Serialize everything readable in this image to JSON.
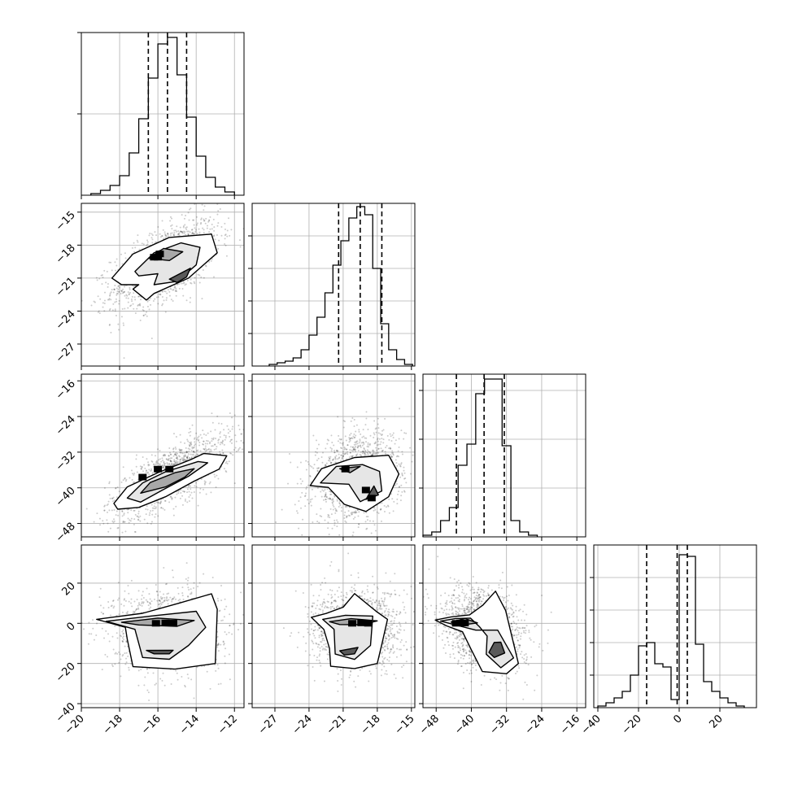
{
  "chart_data": {
    "type": "corner",
    "title": "",
    "parameters": [
      "",
      "",
      "",
      ""
    ],
    "grid": true,
    "x_axes": [
      {
        "range": [
          -20,
          -11.5
        ],
        "ticks": [
          -20,
          -18,
          -16,
          -14,
          -12
        ],
        "tick_labels": [
          "−20",
          "−18",
          "−16",
          "−14",
          "−12"
        ]
      },
      {
        "range": [
          -29,
          -14.7
        ],
        "ticks": [
          -27,
          -24,
          -21,
          -18,
          -15
        ],
        "tick_labels": [
          "−27",
          "−24",
          "−21",
          "−18",
          "−15"
        ]
      },
      {
        "range": [
          -51,
          -14
        ],
        "ticks": [
          -48,
          -40,
          -32,
          -24,
          -16
        ],
        "tick_labels": [
          "−48",
          "−40",
          "−32",
          "−24",
          "−16"
        ]
      },
      {
        "range": [
          -42,
          38
        ],
        "ticks": [
          -40,
          -20,
          0,
          20
        ],
        "tick_labels": [
          "−40",
          "−20",
          "0",
          "20"
        ]
      }
    ],
    "y_axes": [
      null,
      {
        "range": [
          -29,
          -14.2
        ],
        "ticks": [
          -15,
          -18,
          -21,
          -24,
          -27
        ],
        "tick_labels": [
          "−15",
          "−18",
          "−21",
          "−24",
          "−27"
        ]
      },
      {
        "range": [
          -51,
          -14.5
        ],
        "ticks": [
          -16,
          -24,
          -32,
          -40,
          -48
        ],
        "tick_labels": [
          "−16",
          "−24",
          "−32",
          "−40",
          "−48"
        ]
      },
      {
        "range": [
          -42,
          39
        ],
        "ticks": [
          20,
          0,
          -20,
          -40
        ],
        "tick_labels": [
          "20",
          "0",
          "−20",
          "−40"
        ]
      }
    ],
    "marginals": [
      {
        "param": 0,
        "bin_edges": [
          -19.5,
          -19.0,
          -18.5,
          -18.0,
          -17.5,
          -17.0,
          -16.5,
          -16.0,
          -15.5,
          -15.0,
          -14.5,
          -14.0,
          -13.5,
          -13.0,
          -12.5,
          -12.0
        ],
        "counts": [
          1,
          3,
          6,
          12,
          26,
          47,
          72,
          93,
          97,
          74,
          48,
          24,
          11,
          5,
          2
        ],
        "ylim": [
          0,
          100
        ],
        "yticks": [
          50,
          100
        ],
        "quantiles": [
          -16.5,
          -15.5,
          -14.5
        ]
      },
      {
        "param": 1,
        "bin_edges": [
          -27.5,
          -26.8,
          -26.1,
          -25.4,
          -24.7,
          -24.0,
          -23.3,
          -22.6,
          -21.9,
          -21.2,
          -20.5,
          -19.8,
          -19.1,
          -18.4,
          -17.7,
          -17.0,
          -16.3,
          -15.6,
          -14.9
        ],
        "counts": [
          1,
          2,
          3,
          5,
          10,
          19,
          30,
          45,
          62,
          77,
          91,
          98,
          93,
          60,
          26,
          10,
          4,
          1
        ],
        "ylim": [
          0,
          100
        ],
        "yticks": [
          20,
          40,
          60,
          80
        ],
        "quantiles": [
          -21.4,
          -19.5,
          -17.6
        ]
      },
      {
        "param": 2,
        "bin_edges": [
          -51,
          -49,
          -47,
          -45,
          -43,
          -41,
          -39,
          -37,
          -35,
          -33,
          -31,
          -29,
          -27,
          -25
        ],
        "counts": [
          1,
          3,
          10,
          18,
          44,
          57,
          88,
          97,
          97,
          56,
          10,
          3,
          1
        ],
        "ylim": [
          0,
          100
        ],
        "yticks": [
          30,
          60,
          90
        ],
        "quantiles": [
          -43.4,
          -37.1,
          -32.5
        ]
      },
      {
        "param": 3,
        "bin_edges": [
          -40,
          -36,
          -32,
          -28,
          -24,
          -20,
          -16,
          -12,
          -8,
          -4,
          0,
          4,
          8,
          12,
          16,
          20,
          24,
          28,
          32
        ],
        "counts": [
          1,
          3,
          6,
          10,
          20,
          38,
          40,
          27,
          25,
          5,
          94,
          93,
          39,
          16,
          10,
          6,
          3,
          1
        ],
        "ylim": [
          0,
          100
        ],
        "yticks": [
          20,
          40,
          60,
          80
        ],
        "quantiles": [
          -16,
          -1,
          4
        ]
      }
    ],
    "pairs": [
      {
        "x": 0,
        "y": 1,
        "mean": [
          -15.6,
          -19.7
        ],
        "sd": [
          1.4,
          2.0
        ],
        "rho": 0.6,
        "contours": [
          [
            [
              -18.4,
              -21.0
            ],
            [
              -17.3,
              -18.8
            ],
            [
              -15.4,
              -17.3
            ],
            [
              -13.2,
              -17.0
            ],
            [
              -12.9,
              -18.7
            ],
            [
              -14.4,
              -21.0
            ],
            [
              -16.2,
              -22.4
            ],
            [
              -16.6,
              -23.0
            ],
            [
              -17.3,
              -22.0
            ],
            [
              -17.0,
              -21.6
            ],
            [
              -17.9,
              -21.6
            ]
          ],
          [
            [
              -17.2,
              -20.4
            ],
            [
              -16.2,
              -18.7
            ],
            [
              -14.8,
              -17.8
            ],
            [
              -13.8,
              -18.2
            ],
            [
              -14.0,
              -19.8
            ],
            [
              -15.0,
              -21.3
            ],
            [
              -16.2,
              -21.6
            ],
            [
              -16.0,
              -20.6
            ],
            [
              -17.0,
              -20.8
            ]
          ],
          [
            [
              -16.5,
              -19.2
            ],
            [
              -15.7,
              -18.3
            ],
            [
              -14.7,
              -18.6
            ],
            [
              -15.4,
              -19.4
            ]
          ],
          [
            [
              -15.4,
              -21.1
            ],
            [
              -14.3,
              -20.1
            ],
            [
              -14.5,
              -20.9
            ],
            [
              -15.0,
              -21.4
            ]
          ]
        ],
        "peaks": [
          [
            -16.2,
            -19.1
          ],
          [
            -15.9,
            -18.8
          ],
          [
            -16.0,
            -19.1
          ]
        ]
      },
      {
        "x": 0,
        "y": 2,
        "mean": [
          -15.3,
          -37.3
        ],
        "sd": [
          1.6,
          4.8
        ],
        "rho": 0.75,
        "contours": [
          [
            [
              -18.3,
              -43.5
            ],
            [
              -17.6,
              -39.8
            ],
            [
              -16.0,
              -36.6
            ],
            [
              -14.3,
              -33.7
            ],
            [
              -13.6,
              -32.3
            ],
            [
              -12.4,
              -32.8
            ],
            [
              -12.8,
              -35.8
            ],
            [
              -14.1,
              -38.5
            ],
            [
              -15.6,
              -42.0
            ],
            [
              -17.0,
              -44.4
            ],
            [
              -18.1,
              -44.8
            ]
          ],
          [
            [
              -17.6,
              -42.3
            ],
            [
              -16.8,
              -38.9
            ],
            [
              -15.6,
              -36.4
            ],
            [
              -13.9,
              -34.1
            ],
            [
              -13.4,
              -34.4
            ],
            [
              -14.4,
              -37.4
            ],
            [
              -15.8,
              -40.6
            ],
            [
              -16.9,
              -43.2
            ]
          ],
          [
            [
              -16.9,
              -41.2
            ],
            [
              -16.4,
              -38.8
            ],
            [
              -15.1,
              -36.6
            ],
            [
              -14.1,
              -35.7
            ],
            [
              -14.6,
              -37.6
            ],
            [
              -15.6,
              -39.8
            ]
          ]
        ],
        "peaks": [
          [
            -15.4,
            -35.8
          ],
          [
            -16.0,
            -35.8
          ],
          [
            -16.8,
            -37.6
          ]
        ]
      },
      {
        "x": 1,
        "y": 2,
        "mean": [
          -19.7,
          -37.3
        ],
        "sd": [
          2.0,
          4.8
        ],
        "rho": 0.2,
        "contours": [
          [
            [
              -23.9,
              -39.5
            ],
            [
              -22.9,
              -35.7
            ],
            [
              -20.0,
              -33.2
            ],
            [
              -17.0,
              -32.7
            ],
            [
              -16.1,
              -36.9
            ],
            [
              -17.0,
              -42.0
            ],
            [
              -19.0,
              -45.3
            ],
            [
              -20.9,
              -43.7
            ],
            [
              -22.3,
              -39.9
            ]
          ],
          [
            [
              -23.0,
              -38.9
            ],
            [
              -21.6,
              -35.2
            ],
            [
              -19.3,
              -34.8
            ],
            [
              -17.8,
              -36.3
            ],
            [
              -17.6,
              -40.7
            ],
            [
              -19.5,
              -43.1
            ],
            [
              -20.5,
              -39.2
            ]
          ],
          [
            [
              -21.3,
              -35.7
            ],
            [
              -19.5,
              -35.2
            ],
            [
              -20.4,
              -36.6
            ]
          ],
          [
            [
              -19.0,
              -42.6
            ],
            [
              -18.3,
              -39.6
            ],
            [
              -17.9,
              -41.6
            ]
          ]
        ],
        "peaks": [
          [
            -20.8,
            -35.8
          ],
          [
            -19.0,
            -40.5
          ],
          [
            -18.5,
            -42.3
          ]
        ]
      },
      {
        "x": 0,
        "y": 3,
        "mean": [
          -15.5,
          -3
        ],
        "sd": [
          1.4,
          10
        ],
        "rho": 0,
        "contours": [
          [
            [
              -19.2,
              2.0
            ],
            [
              -16.8,
              5.0
            ],
            [
              -14.9,
              10.0
            ],
            [
              -13.2,
              14.7
            ],
            [
              -12.9,
              7.0
            ],
            [
              -13.0,
              -20.0
            ],
            [
              -15.1,
              -22.8
            ],
            [
              -17.3,
              -21.6
            ],
            [
              -17.6,
              -8.0
            ],
            [
              -17.7,
              -2.0
            ]
          ],
          [
            [
              -18.7,
              1.0
            ],
            [
              -16.2,
              3.8
            ],
            [
              -14.0,
              6.0
            ],
            [
              -13.5,
              -2.0
            ],
            [
              -14.4,
              -11.0
            ],
            [
              -15.4,
              -17.9
            ],
            [
              -16.8,
              -17.0
            ],
            [
              -17.2,
              -3.0
            ]
          ],
          [
            [
              -17.9,
              0.5
            ],
            [
              -16.0,
              2.6
            ],
            [
              -14.1,
              1.4
            ],
            [
              -15.0,
              -1.5
            ],
            [
              -17.0,
              -0.8
            ]
          ],
          [
            [
              -16.6,
              -13.5
            ],
            [
              -15.2,
              -13.4
            ],
            [
              -15.4,
              -15.2
            ],
            [
              -16.2,
              -15.2
            ]
          ]
        ],
        "peaks": [
          [
            -15.6,
            0.2
          ],
          [
            -15.2,
            0.1
          ],
          [
            -16.1,
            0.0
          ]
        ]
      },
      {
        "x": 1,
        "y": 3,
        "mean": [
          -19.7,
          -3
        ],
        "sd": [
          2.0,
          10
        ],
        "rho": 0,
        "contours": [
          [
            [
              -23.8,
              3.0
            ],
            [
              -22.5,
              4.9
            ],
            [
              -21.0,
              8.0
            ],
            [
              -20.0,
              14.8
            ],
            [
              -18.1,
              6.0
            ],
            [
              -17.1,
              2.0
            ],
            [
              -17.6,
              -10.5
            ],
            [
              -18.0,
              -20.0
            ],
            [
              -20.0,
              -22.5
            ],
            [
              -22.1,
              -21.4
            ],
            [
              -22.2,
              -12.5
            ],
            [
              -22.7,
              -3.0
            ]
          ],
          [
            [
              -22.8,
              2.0
            ],
            [
              -20.8,
              4.0
            ],
            [
              -18.4,
              3.6
            ],
            [
              -18.6,
              -11.0
            ],
            [
              -20.0,
              -18.0
            ],
            [
              -21.7,
              -15.3
            ],
            [
              -21.8,
              -3.0
            ]
          ],
          [
            [
              -22.2,
              0.8
            ],
            [
              -20.3,
              2.3
            ],
            [
              -18.0,
              1.2
            ],
            [
              -19.4,
              -0.7
            ],
            [
              -21.3,
              -0.6
            ]
          ],
          [
            [
              -21.3,
              -13.7
            ],
            [
              -19.7,
              -12.0
            ],
            [
              -20.0,
              -15.2
            ],
            [
              -20.9,
              -15.8
            ]
          ]
        ],
        "peaks": [
          [
            -19.4,
            0.2
          ],
          [
            -18.8,
            0.0
          ],
          [
            -20.2,
            0.0
          ]
        ]
      },
      {
        "x": 2,
        "y": 3,
        "mean": [
          -37.3,
          -3
        ],
        "sd": [
          4.8,
          10
        ],
        "rho": -0.25,
        "contours": [
          [
            [
              -48.2,
              1.6
            ],
            [
              -44.6,
              3.2
            ],
            [
              -40.4,
              4.2
            ],
            [
              -37.4,
              9.0
            ],
            [
              -34.5,
              16.0
            ],
            [
              -32.2,
              6.4
            ],
            [
              -29.3,
              -20.0
            ],
            [
              -32.0,
              -25.1
            ],
            [
              -37.5,
              -24.0
            ],
            [
              -39.9,
              -13.6
            ],
            [
              -42.0,
              -4.2
            ],
            [
              -45.6,
              -1.3
            ]
          ],
          [
            [
              -47.0,
              1.1
            ],
            [
              -43.6,
              2.4
            ],
            [
              -40.2,
              2.6
            ],
            [
              -38.2,
              -1.6
            ],
            [
              -36.4,
              -6.3
            ],
            [
              -36.6,
              -15.4
            ],
            [
              -33.3,
              -22.1
            ],
            [
              -30.4,
              -17.2
            ],
            [
              -34.0,
              -3.4
            ],
            [
              -39.0,
              -3.4
            ]
          ],
          [
            [
              -44.6,
              0.6
            ],
            [
              -41.5,
              2.4
            ],
            [
              -38.6,
              0.2
            ],
            [
              -42.4,
              -0.9
            ]
          ],
          [
            [
              -34.8,
              -9.5
            ],
            [
              -33.3,
              -9.4
            ],
            [
              -32.4,
              -14.8
            ],
            [
              -34.8,
              -17.0
            ],
            [
              -36.0,
              -14.5
            ]
          ]
        ],
        "peaks": [
          [
            -42.5,
            0.2
          ],
          [
            -41.5,
            0.1
          ],
          [
            -43.5,
            0.0
          ]
        ]
      }
    ]
  }
}
